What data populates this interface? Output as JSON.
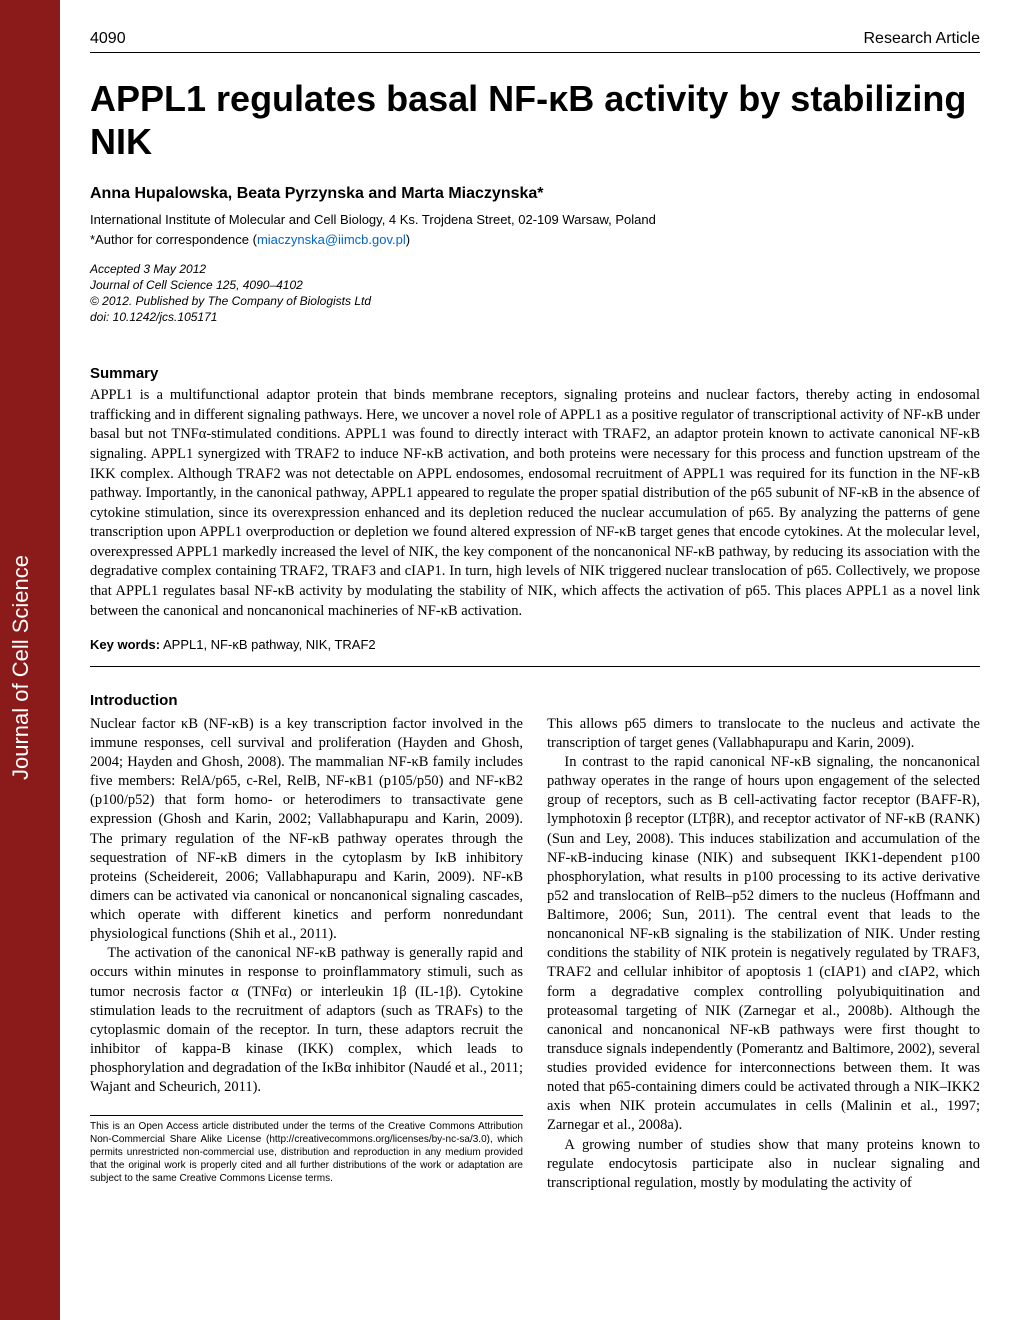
{
  "journal_label": "Journal of Cell Science",
  "header": {
    "page_number": "4090",
    "article_type": "Research Article"
  },
  "title": "APPL1 regulates basal NF-κB activity by stabilizing NIK",
  "authors": "Anna Hupalowska, Beata Pyrzynska and Marta Miaczynska*",
  "affiliation": "International Institute of Molecular and Cell Biology, 4 Ks. Trojdena Street, 02-109 Warsaw, Poland",
  "correspondence_prefix": "*Author for correspondence (",
  "correspondence_email": "miaczynska@iimcb.gov.pl",
  "correspondence_suffix": ")",
  "accepted": {
    "line1": "Accepted 3 May 2012",
    "line2": "Journal of Cell Science 125, 4090–4102",
    "line3": "© 2012. Published by The Company of Biologists Ltd",
    "line4": "doi: 10.1242/jcs.105171"
  },
  "summary": {
    "heading": "Summary",
    "text": "APPL1 is a multifunctional adaptor protein that binds membrane receptors, signaling proteins and nuclear factors, thereby acting in endosomal trafficking and in different signaling pathways. Here, we uncover a novel role of APPL1 as a positive regulator of transcriptional activity of NF-κB under basal but not TNFα-stimulated conditions. APPL1 was found to directly interact with TRAF2, an adaptor protein known to activate canonical NF-κB signaling. APPL1 synergized with TRAF2 to induce NF-κB activation, and both proteins were necessary for this process and function upstream of the IKK complex. Although TRAF2 was not detectable on APPL endosomes, endosomal recruitment of APPL1 was required for its function in the NF-κB pathway. Importantly, in the canonical pathway, APPL1 appeared to regulate the proper spatial distribution of the p65 subunit of NF-κB in the absence of cytokine stimulation, since its overexpression enhanced and its depletion reduced the nuclear accumulation of p65. By analyzing the patterns of gene transcription upon APPL1 overproduction or depletion we found altered expression of NF-κB target genes that encode cytokines. At the molecular level, overexpressed APPL1 markedly increased the level of NIK, the key component of the noncanonical NF-κB pathway, by reducing its association with the degradative complex containing TRAF2, TRAF3 and cIAP1. In turn, high levels of NIK triggered nuclear translocation of p65. Collectively, we propose that APPL1 regulates basal NF-κB activity by modulating the stability of NIK, which affects the activation of p65. This places APPL1 as a novel link between the canonical and noncanonical machineries of NF-κB activation."
  },
  "keywords": {
    "label": "Key words:",
    "text": " APPL1, NF-κB pathway, NIK, TRAF2"
  },
  "introduction": {
    "heading": "Introduction",
    "col1": {
      "p1": "Nuclear factor κB (NF-κB) is a key transcription factor involved in the immune responses, cell survival and proliferation (Hayden and Ghosh, 2004; Hayden and Ghosh, 2008). The mammalian NF-κB family includes five members: RelA/p65, c-Rel, RelB, NF-κB1 (p105/p50) and NF-κB2 (p100/p52) that form homo- or heterodimers to transactivate gene expression (Ghosh and Karin, 2002; Vallabhapurapu and Karin, 2009). The primary regulation of the NF-κB pathway operates through the sequestration of NF-κB dimers in the cytoplasm by IκB inhibitory proteins (Scheidereit, 2006; Vallabhapurapu and Karin, 2009). NF-κB dimers can be activated via canonical or noncanonical signaling cascades, which operate with different kinetics and perform nonredundant physiological functions (Shih et al., 2011).",
      "p2": "The activation of the canonical NF-κB pathway is generally rapid and occurs within minutes in response to proinflammatory stimuli, such as tumor necrosis factor α (TNFα) or interleukin 1β (IL-1β). Cytokine stimulation leads to the recruitment of adaptors (such as TRAFs) to the cytoplasmic domain of the receptor. In turn, these adaptors recruit the inhibitor of kappa-B kinase (IKK) complex, which leads to phosphorylation and degradation of the IκBα inhibitor (Naudé et al., 2011; Wajant and Scheurich, 2011)."
    },
    "col2": {
      "p1": "This allows p65 dimers to translocate to the nucleus and activate the transcription of target genes (Vallabhapurapu and Karin, 2009).",
      "p2": "In contrast to the rapid canonical NF-κB signaling, the noncanonical pathway operates in the range of hours upon engagement of the selected group of receptors, such as B cell-activating factor receptor (BAFF-R), lymphotoxin β receptor (LTβR), and receptor activator of NF-κB (RANK) (Sun and Ley, 2008). This induces stabilization and accumulation of the NF-κB-inducing kinase (NIK) and subsequent IKK1-dependent p100 phosphorylation, what results in p100 processing to its active derivative p52 and translocation of RelB–p52 dimers to the nucleus (Hoffmann and Baltimore, 2006; Sun, 2011). The central event that leads to the noncanonical NF-κB signaling is the stabilization of NIK. Under resting conditions the stability of NIK protein is negatively regulated by TRAF3, TRAF2 and cellular inhibitor of apoptosis 1 (cIAP1) and cIAP2, which form a degradative complex controlling polyubiquitination and proteasomal targeting of NIK (Zarnegar et al., 2008b). Although the canonical and noncanonical NF-κB pathways were first thought to transduce signals independently (Pomerantz and Baltimore, 2002), several studies provided evidence for interconnections between them. It was noted that p65-containing dimers could be activated through a NIK–IKK2 axis when NIK protein accumulates in cells (Malinin et al., 1997; Zarnegar et al., 2008a).",
      "p3": "A growing number of studies show that many proteins known to regulate endocytosis participate also in nuclear signaling and transcriptional regulation, mostly by modulating the activity of"
    }
  },
  "footnote": "This is an Open Access article distributed under the terms of the Creative Commons Attribution Non-Commercial Share Alike License (http://creativecommons.org/licenses/by-nc-sa/3.0), which permits unrestricted non-commercial use, distribution and reproduction in any medium provided that the original work is properly cited and all further distributions of the work or adaptation are subject to the same Creative Commons License terms."
}
